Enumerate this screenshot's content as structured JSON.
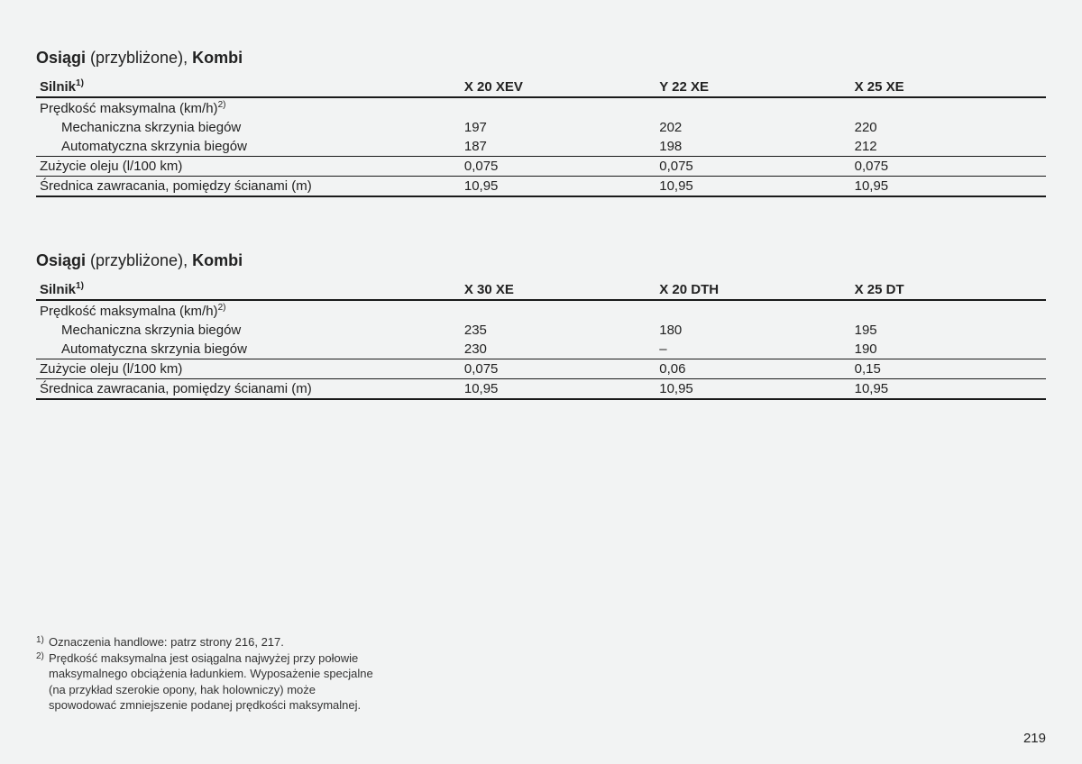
{
  "page_number": "219",
  "tables": [
    {
      "title_bold1": "Osiągi",
      "title_thin": " (przybliżone), ",
      "title_bold2": "Kombi",
      "header_label": "Silnik",
      "header_sup": "1)",
      "engines": [
        "X 20 XEV",
        "Y 22 XE",
        "X 25 XE"
      ],
      "rows": [
        {
          "label": "Prędkość maksymalna (km/h)",
          "label_sup": "2)",
          "indent": false,
          "vals": [
            "",
            "",
            ""
          ],
          "border": "none"
        },
        {
          "label": "Mechaniczna skrzynia biegów",
          "indent": true,
          "vals": [
            "197",
            "202",
            "220"
          ],
          "border": "none"
        },
        {
          "label": "Automatyczna skrzynia biegów",
          "indent": true,
          "vals": [
            "187",
            "198",
            "212"
          ],
          "border": "thin"
        },
        {
          "label": "Zużycie oleju (l/100 km)",
          "indent": false,
          "vals": [
            "0,075",
            "0,075",
            "0,075"
          ],
          "border": "thin"
        },
        {
          "label": "Średnica zawracania, pomiędzy ścianami (m)",
          "indent": false,
          "vals": [
            "10,95",
            "10,95",
            "10,95"
          ],
          "border": "thick"
        }
      ]
    },
    {
      "title_bold1": "Osiągi",
      "title_thin": " (przybliżone), ",
      "title_bold2": "Kombi",
      "header_label": "Silnik",
      "header_sup": "1)",
      "engines": [
        "X 30 XE",
        "X 20 DTH",
        "X 25 DT"
      ],
      "rows": [
        {
          "label": "Prędkość maksymalna (km/h)",
          "label_sup": "2)",
          "indent": false,
          "vals": [
            "",
            "",
            ""
          ],
          "border": "none"
        },
        {
          "label": "Mechaniczna skrzynia biegów",
          "indent": true,
          "vals": [
            "235",
            "180",
            "195"
          ],
          "border": "none"
        },
        {
          "label": "Automatyczna skrzynia biegów",
          "indent": true,
          "vals": [
            "230",
            "–",
            "190"
          ],
          "border": "thin"
        },
        {
          "label": "Zużycie oleju (l/100 km)",
          "indent": false,
          "vals": [
            "0,075",
            "0,06",
            "0,15"
          ],
          "border": "thin"
        },
        {
          "label": "Średnica zawracania, pomiędzy ścianami (m)",
          "indent": false,
          "vals": [
            "10,95",
            "10,95",
            "10,95"
          ],
          "border": "thick"
        }
      ]
    }
  ],
  "footnotes": [
    {
      "num": "1)",
      "text": "Oznaczenia handlowe: patrz strony 216, 217."
    },
    {
      "num": "2)",
      "text": "Prędkość maksymalna jest osiągalna najwyżej przy połowie maksymalnego obciążenia ładunkiem. Wyposażenie specjalne (na przykład szerokie opony, hak holowniczy) może spowodować zmniejszenie podanej prędkości maksymalnej."
    }
  ]
}
